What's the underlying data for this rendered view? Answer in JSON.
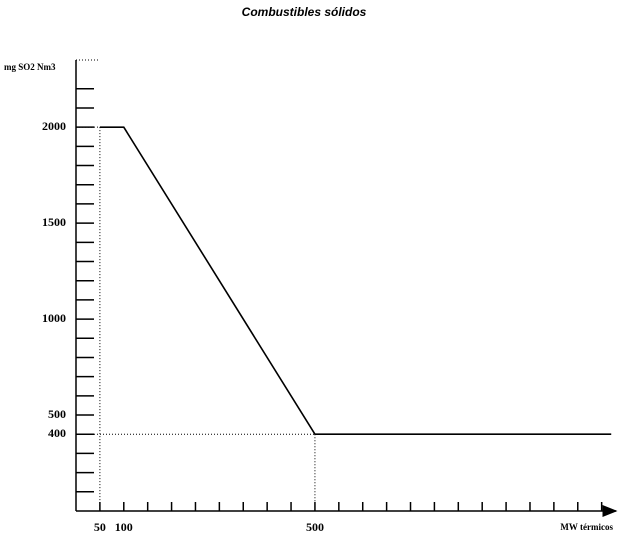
{
  "chart_data": {
    "type": "line",
    "title": "Combustibles sólidos",
    "y_label": "mg SO2 Nm3",
    "x_label": "MW térmicos",
    "xlim": [
      0,
      1130
    ],
    "ylim": [
      0,
      2350
    ],
    "xticks": [
      50,
      100,
      500
    ],
    "yticks": [
      400,
      500,
      1000,
      1500,
      2000
    ],
    "xminorticks": [
      150,
      200,
      250,
      300,
      350,
      400,
      450,
      550,
      600,
      650,
      700,
      750,
      800,
      850,
      900,
      950,
      1000,
      1050,
      1100
    ],
    "yminorticks": [
      100,
      200,
      300,
      600,
      700,
      800,
      900,
      1100,
      1200,
      1300,
      1400,
      1600,
      1700,
      1800,
      1900,
      2100,
      2200
    ],
    "series": [
      {
        "x": [
          50,
          100,
          500,
          1120
        ],
        "values": [
          2000,
          2000,
          400,
          400
        ],
        "color": "#000000"
      }
    ]
  }
}
